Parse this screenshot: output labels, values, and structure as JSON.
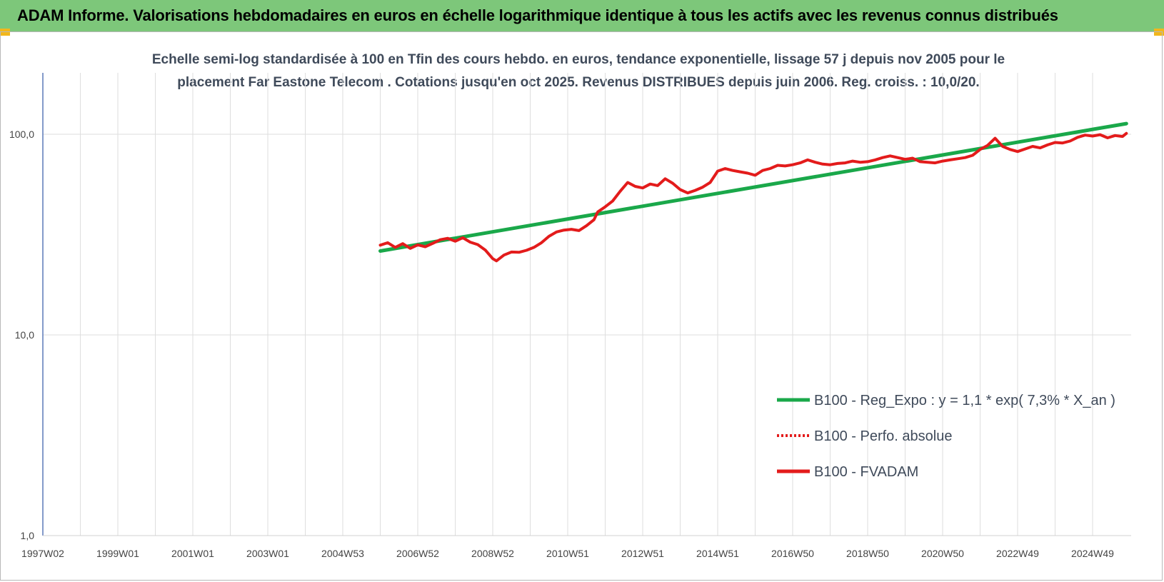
{
  "header": {
    "title": "ADAM Informe. Valorisations hebdomadaires en euros en échelle logarithmique identique à tous les actifs avec les revenus connus distribués"
  },
  "chart_data": {
    "type": "line",
    "title_line1": "Echelle semi-log standardisée à 100 en Tfin des cours hebdo. en euros, tendance exponentielle, lissage 57 j depuis nov 2005 pour le",
    "title_line2": "placement Far Eastone Telecom . Cotations jusqu'en oct 2025. Revenus DISTRIBUES depuis juin 2006. Reg. croiss. : 10,0/20.",
    "y_scale": "log",
    "ylim": [
      1,
      200
    ],
    "y_ticks": [
      {
        "value": 1,
        "label": "1,0"
      },
      {
        "value": 10,
        "label": "10,0"
      },
      {
        "value": 100,
        "label": "100,0"
      }
    ],
    "xlim": [
      1997.0,
      2025.9
    ],
    "x_ticks": [
      {
        "value": 1997.0,
        "label": "1997W02"
      },
      {
        "value": 1999.0,
        "label": "1999W01"
      },
      {
        "value": 2001.0,
        "label": "2001W01"
      },
      {
        "value": 2003.0,
        "label": "2003W01"
      },
      {
        "value": 2005.0,
        "label": "2004W53"
      },
      {
        "value": 2007.0,
        "label": "2006W52"
      },
      {
        "value": 2009.0,
        "label": "2008W52"
      },
      {
        "value": 2011.0,
        "label": "2010W51"
      },
      {
        "value": 2013.0,
        "label": "2012W51"
      },
      {
        "value": 2015.0,
        "label": "2014W51"
      },
      {
        "value": 2017.0,
        "label": "2016W50"
      },
      {
        "value": 2019.0,
        "label": "2018W50"
      },
      {
        "value": 2021.0,
        "label": "2020W50"
      },
      {
        "value": 2023.0,
        "label": "2022W49"
      },
      {
        "value": 2025.0,
        "label": "2024W49"
      }
    ],
    "grid": true,
    "legend_position": "bottom-right",
    "series": [
      {
        "name": "B100 - Reg_Expo : y = 1,1 * exp( 7,3% *  X_an )",
        "color": "#1aa84a",
        "style": "solid",
        "points": [
          [
            2006.0,
            26.2
          ],
          [
            2025.9,
            113.0
          ]
        ]
      },
      {
        "name": "B100 - Perfo. absolue",
        "color": "#e31b1b",
        "style": "dotted",
        "points": []
      },
      {
        "name": "B100 - FVADAM",
        "color": "#e31b1b",
        "style": "solid",
        "points": [
          [
            2006.0,
            28.0
          ],
          [
            2006.2,
            28.8
          ],
          [
            2006.4,
            27.3
          ],
          [
            2006.6,
            28.5
          ],
          [
            2006.8,
            27.0
          ],
          [
            2007.0,
            28.1
          ],
          [
            2007.2,
            27.5
          ],
          [
            2007.4,
            28.6
          ],
          [
            2007.6,
            29.8
          ],
          [
            2007.8,
            30.3
          ],
          [
            2008.0,
            29.3
          ],
          [
            2008.2,
            30.5
          ],
          [
            2008.4,
            29.0
          ],
          [
            2008.6,
            28.2
          ],
          [
            2008.8,
            26.5
          ],
          [
            2009.0,
            24.0
          ],
          [
            2009.1,
            23.4
          ],
          [
            2009.3,
            25.0
          ],
          [
            2009.5,
            25.9
          ],
          [
            2009.7,
            25.8
          ],
          [
            2009.9,
            26.4
          ],
          [
            2010.1,
            27.3
          ],
          [
            2010.3,
            28.8
          ],
          [
            2010.5,
            31.0
          ],
          [
            2010.7,
            32.6
          ],
          [
            2010.9,
            33.3
          ],
          [
            2011.1,
            33.6
          ],
          [
            2011.3,
            33.1
          ],
          [
            2011.5,
            35.0
          ],
          [
            2011.7,
            37.5
          ],
          [
            2011.8,
            41.0
          ],
          [
            2012.0,
            43.5
          ],
          [
            2012.2,
            46.5
          ],
          [
            2012.4,
            52.0
          ],
          [
            2012.6,
            57.5
          ],
          [
            2012.8,
            55.0
          ],
          [
            2013.0,
            54.0
          ],
          [
            2013.2,
            56.5
          ],
          [
            2013.4,
            55.5
          ],
          [
            2013.6,
            60.0
          ],
          [
            2013.8,
            57.0
          ],
          [
            2014.0,
            53.0
          ],
          [
            2014.2,
            51.0
          ],
          [
            2014.4,
            52.5
          ],
          [
            2014.6,
            54.5
          ],
          [
            2014.8,
            57.5
          ],
          [
            2015.0,
            65.5
          ],
          [
            2015.2,
            67.5
          ],
          [
            2015.4,
            66.0
          ],
          [
            2015.6,
            65.0
          ],
          [
            2015.8,
            64.0
          ],
          [
            2016.0,
            62.5
          ],
          [
            2016.2,
            66.0
          ],
          [
            2016.4,
            67.5
          ],
          [
            2016.6,
            70.0
          ],
          [
            2016.8,
            69.5
          ],
          [
            2017.0,
            70.5
          ],
          [
            2017.2,
            72.0
          ],
          [
            2017.4,
            74.5
          ],
          [
            2017.6,
            72.5
          ],
          [
            2017.8,
            71.0
          ],
          [
            2018.0,
            70.5
          ],
          [
            2018.2,
            71.5
          ],
          [
            2018.4,
            72.0
          ],
          [
            2018.6,
            73.5
          ],
          [
            2018.8,
            72.5
          ],
          [
            2019.0,
            73.0
          ],
          [
            2019.2,
            74.5
          ],
          [
            2019.4,
            76.5
          ],
          [
            2019.6,
            78.0
          ],
          [
            2019.8,
            76.5
          ],
          [
            2020.0,
            75.0
          ],
          [
            2020.2,
            76.0
          ],
          [
            2020.4,
            73.0
          ],
          [
            2020.6,
            72.5
          ],
          [
            2020.8,
            72.0
          ],
          [
            2021.0,
            73.5
          ],
          [
            2021.2,
            74.5
          ],
          [
            2021.4,
            75.5
          ],
          [
            2021.6,
            76.5
          ],
          [
            2021.8,
            78.5
          ],
          [
            2022.0,
            84.0
          ],
          [
            2022.2,
            88.0
          ],
          [
            2022.4,
            95.5
          ],
          [
            2022.6,
            87.0
          ],
          [
            2022.8,
            84.0
          ],
          [
            2023.0,
            82.0
          ],
          [
            2023.2,
            84.5
          ],
          [
            2023.4,
            87.0
          ],
          [
            2023.6,
            85.5
          ],
          [
            2023.8,
            88.5
          ],
          [
            2024.0,
            91.0
          ],
          [
            2024.2,
            90.5
          ],
          [
            2024.4,
            92.5
          ],
          [
            2024.6,
            96.5
          ],
          [
            2024.8,
            99.0
          ],
          [
            2025.0,
            98.0
          ],
          [
            2025.2,
            99.5
          ],
          [
            2025.4,
            96.0
          ],
          [
            2025.6,
            98.5
          ],
          [
            2025.8,
            97.5
          ],
          [
            2025.9,
            101.0
          ]
        ]
      }
    ]
  }
}
